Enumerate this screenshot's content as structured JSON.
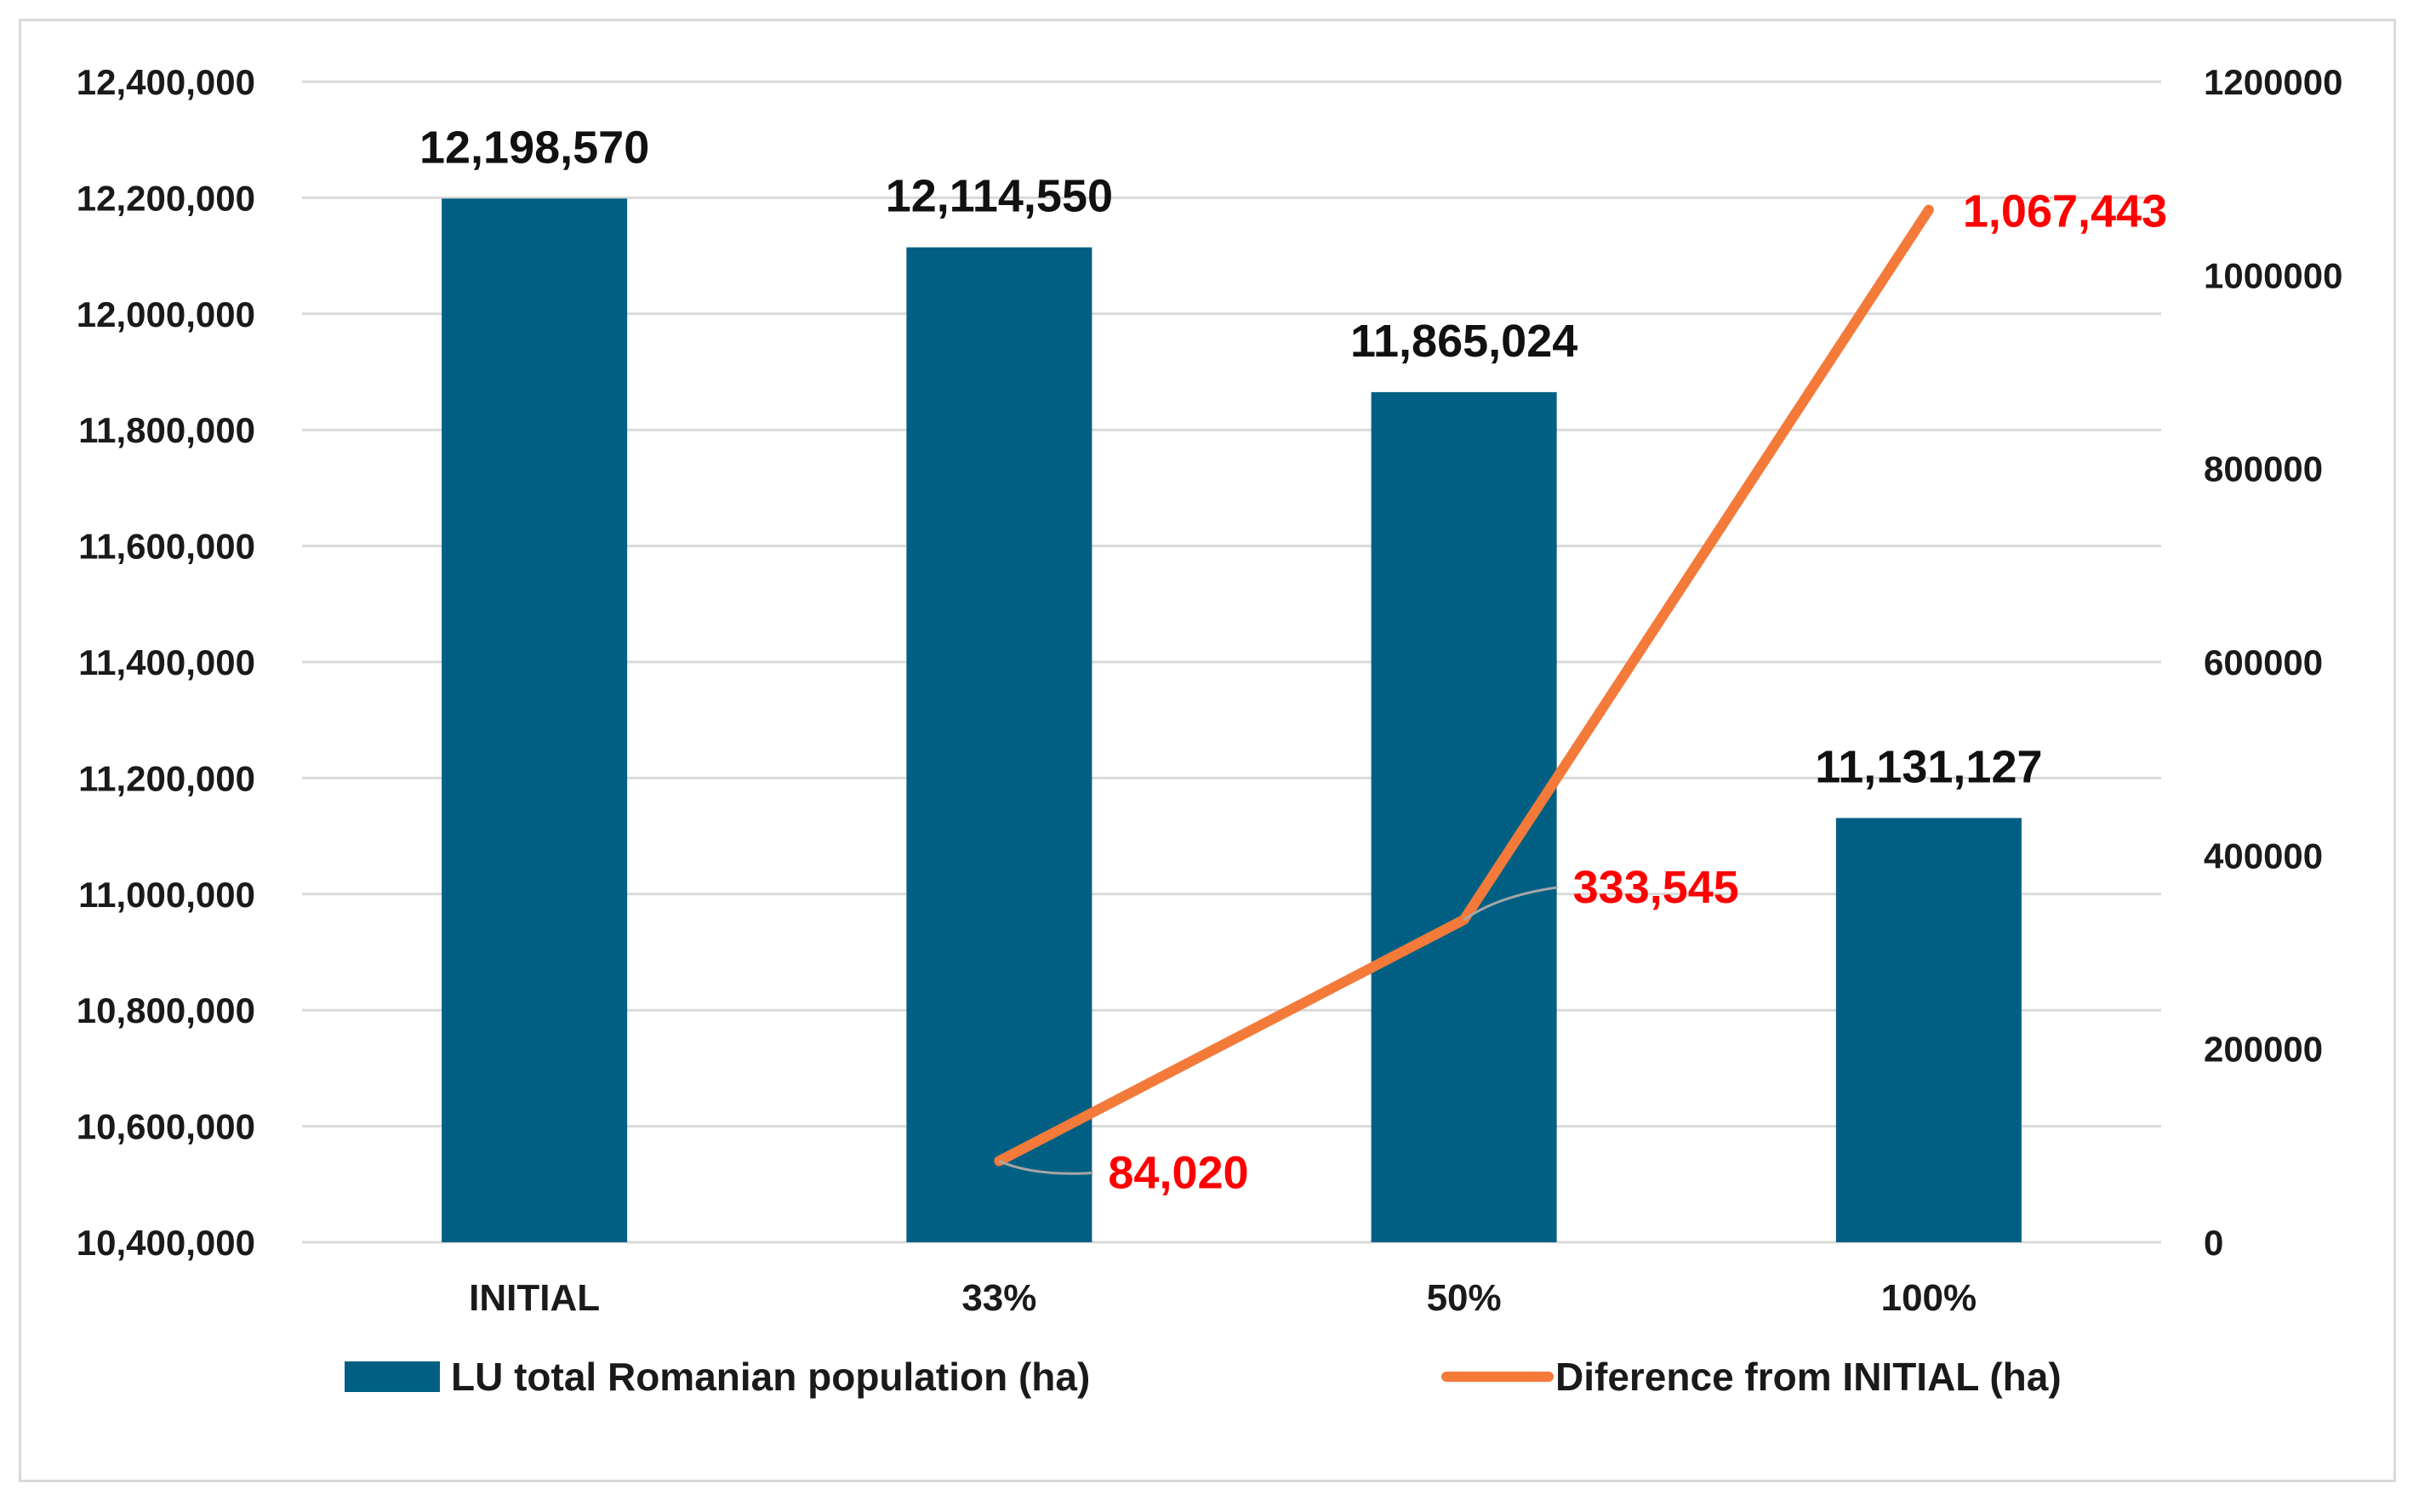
{
  "chart_data": {
    "type": "bar",
    "categories": [
      "INITIAL",
      "33%",
      "50%",
      "100%"
    ],
    "series": [
      {
        "name": "LU total Romanian population (ha)",
        "type": "bar",
        "axis": "left",
        "color": "#005f83",
        "values": [
          12198570,
          12114550,
          11865024,
          11131127
        ],
        "data_labels": [
          "12,198,570",
          "12,114,550",
          "11,865,024",
          "11,131,127"
        ]
      },
      {
        "name": "Diference from INITIAL (ha)",
        "type": "line",
        "axis": "right",
        "color": "#f47a3a",
        "values": [
          null,
          84020,
          333545,
          1067443
        ],
        "data_labels": [
          "",
          "84,020",
          "333,545",
          "1,067,443"
        ]
      }
    ],
    "left_axis": {
      "ylim": [
        10400000,
        12400000
      ],
      "ticks": [
        "10,400,000",
        "10,600,000",
        "10,800,000",
        "11,000,000",
        "11,200,000",
        "11,400,000",
        "11,600,000",
        "11,800,000",
        "12,000,000",
        "12,200,000",
        "12,400,000"
      ]
    },
    "right_axis": {
      "ylim": [
        0,
        1200000
      ],
      "ticks": [
        "0",
        "200000",
        "400000",
        "600000",
        "800000",
        "1000000",
        "1200000"
      ]
    },
    "grid": true,
    "legend": "bottom"
  }
}
